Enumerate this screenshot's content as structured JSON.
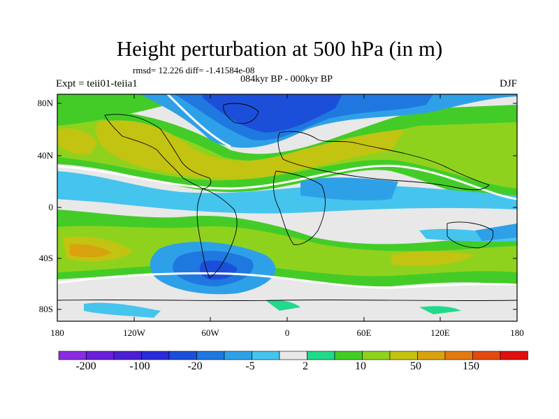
{
  "title": "Height perturbation at 500 hPa (in m)",
  "stats_line": "rmsd= 12.226 diff= -1.41584e-08",
  "period_line": "084kyr BP - 000kyr BP",
  "experiment_label": "Expt = teii01-teiia1",
  "season_label": "DJF",
  "y_ticks": [
    "80N",
    "40N",
    "0",
    "40S",
    "80S"
  ],
  "x_ticks": [
    "180",
    "120W",
    "60W",
    "0",
    "60E",
    "120E",
    "180"
  ],
  "colorbar": {
    "labels": [
      "-200",
      "-100",
      "-20",
      "-5",
      "2",
      "10",
      "50",
      "150"
    ],
    "colors": [
      "#8a2be2",
      "#6a1fd9",
      "#4d1fd0",
      "#2b2bd9",
      "#1c4fd9",
      "#1f78e0",
      "#2ea0e8",
      "#45c4ee",
      "#e8e8e8",
      "#21d98a",
      "#43cc28",
      "#8fd21e",
      "#c3c312",
      "#d9a20f",
      "#e37a0f",
      "#e24a0f",
      "#e01010"
    ]
  }
}
